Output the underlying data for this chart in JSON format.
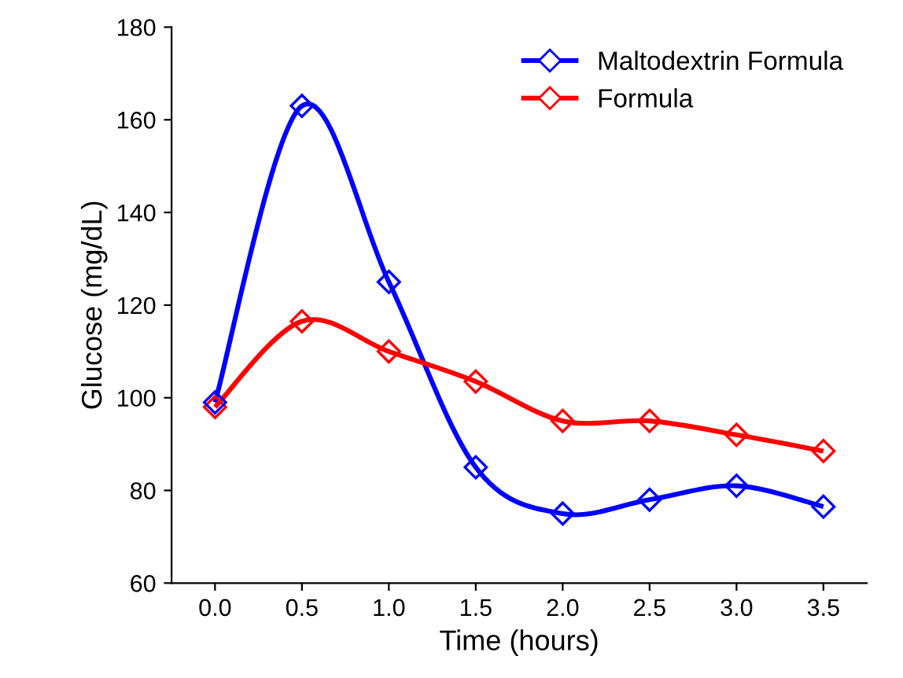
{
  "chart_data": {
    "type": "line",
    "xlabel": "Time (hours)",
    "ylabel": "Glucose (mg/dL)",
    "categories": [
      "0.0",
      "0.5",
      "1.0",
      "1.5",
      "2.0",
      "2.5",
      "3.0",
      "3.5"
    ],
    "series": [
      {
        "name": "Maltodextrin Formula",
        "color": "#0000ff",
        "values": [
          99,
          163,
          125,
          85,
          75,
          78,
          81,
          76.5
        ]
      },
      {
        "name": "Formula",
        "color": "#ff0000",
        "values": [
          98,
          116.5,
          110,
          103.5,
          95,
          95,
          92,
          88.5
        ]
      }
    ],
    "ylim": [
      60,
      180
    ],
    "yticks": [
      60,
      80,
      100,
      120,
      140,
      160,
      180
    ],
    "marker": "diamond",
    "line_style": "solid",
    "grid": false,
    "legend": "top right"
  }
}
